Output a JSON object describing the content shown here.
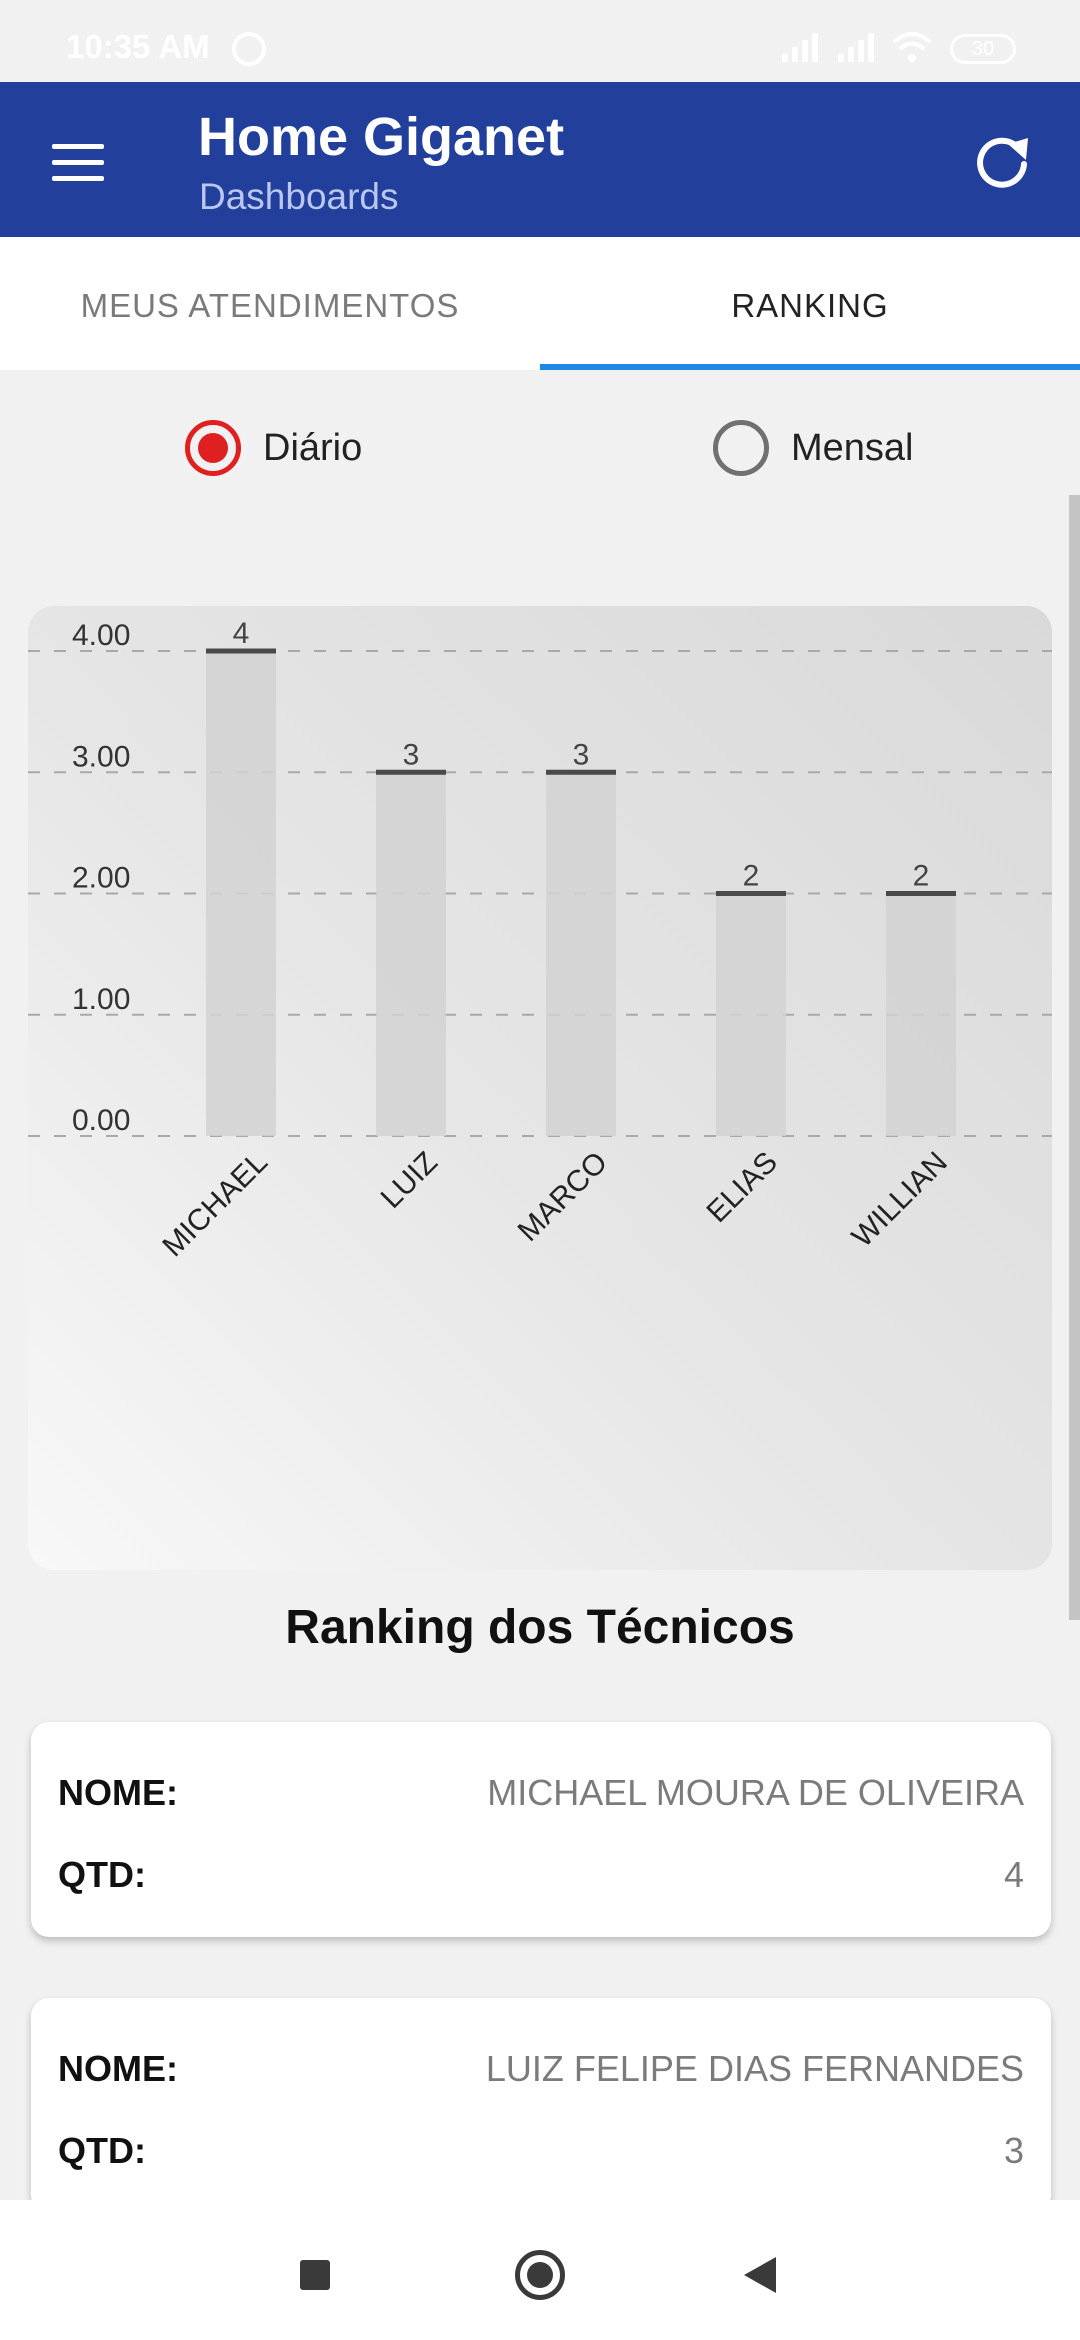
{
  "status_bar": {
    "time": "10:35 AM",
    "battery": "30",
    "icons": [
      "alarm-icon",
      "signal-icon",
      "signal-icon",
      "wifi-icon",
      "battery-icon"
    ]
  },
  "app_bar": {
    "title": "Home Giganet",
    "subtitle": "Dashboards",
    "menu_icon": "menu-icon",
    "refresh_icon": "refresh-icon",
    "color": "#213f9b"
  },
  "tabs": [
    {
      "label": "MEUS ATENDIMENTOS",
      "selected": false
    },
    {
      "label": "RANKING",
      "selected": true
    }
  ],
  "radio": [
    {
      "label": "Diário",
      "selected": true
    },
    {
      "label": "Mensal",
      "selected": false
    }
  ],
  "chart_data": {
    "type": "bar",
    "categories": [
      "MICHAEL",
      "LUIZ",
      "MARCO",
      "ELIAS",
      "WILLIAN"
    ],
    "values": [
      4,
      3,
      3,
      2,
      2
    ],
    "data_labels": [
      "4",
      "3",
      "3",
      "2",
      "2"
    ],
    "yticks": [
      "0.00",
      "1.00",
      "2.00",
      "3.00",
      "4.00"
    ],
    "ylim": [
      0,
      4
    ],
    "grid": true,
    "grid_style": "dashed",
    "title": "",
    "xlabel": "",
    "ylabel": ""
  },
  "section_heading": "Ranking dos Técnicos",
  "ranking": [
    {
      "name_label": "NOME:",
      "name": "MICHAEL MOURA DE OLIVEIRA",
      "qty_label": "QTD:",
      "qty": "4"
    },
    {
      "name_label": "NOME:",
      "name": "LUIZ FELIPE DIAS FERNANDES",
      "qty_label": "QTD:",
      "qty": "3"
    }
  ],
  "colors": {
    "accent": "#1e88e5",
    "radio_selected": "#e02020"
  }
}
